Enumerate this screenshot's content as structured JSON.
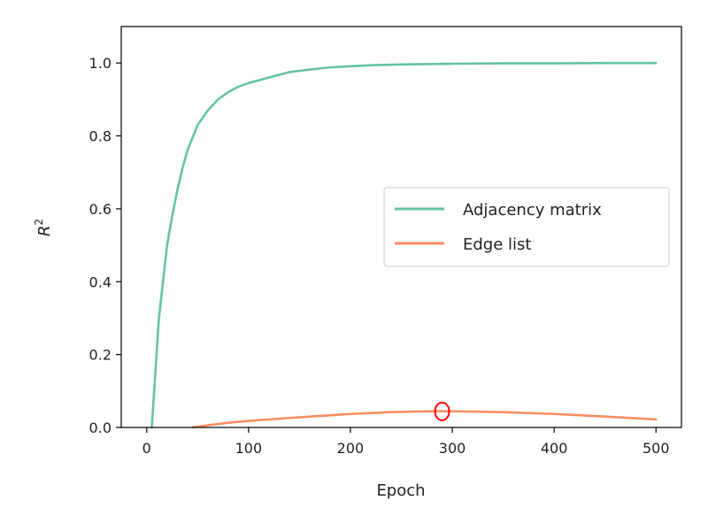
{
  "chart_data": {
    "type": "line",
    "title": "",
    "xlabel": "Epoch",
    "ylabel": "R",
    "ylabel_superscript": "2",
    "xlim": [
      -25,
      525
    ],
    "ylim": [
      0.0,
      1.1
    ],
    "xticks": [
      "0",
      "100",
      "200",
      "300",
      "400",
      "500"
    ],
    "yticks": [
      "0.0",
      "0.2",
      "0.4",
      "0.6",
      "0.8",
      "1.0"
    ],
    "grid": false,
    "legend_position": "center-right",
    "series": [
      {
        "name": "Adjacency matrix",
        "color": "#66c2a5",
        "x": [
          5,
          8,
          12,
          16,
          20,
          25,
          30,
          35,
          40,
          50,
          60,
          70,
          80,
          90,
          100,
          120,
          140,
          160,
          180,
          200,
          220,
          250,
          300,
          350,
          400,
          450,
          500
        ],
        "y": [
          0.0,
          0.13,
          0.3,
          0.4,
          0.5,
          0.58,
          0.65,
          0.71,
          0.76,
          0.83,
          0.87,
          0.9,
          0.92,
          0.935,
          0.945,
          0.96,
          0.975,
          0.982,
          0.988,
          0.991,
          0.994,
          0.996,
          0.998,
          0.999,
          0.999,
          1.0,
          1.0
        ]
      },
      {
        "name": "Edge list",
        "color": "#fc8d62",
        "x": [
          45,
          60,
          80,
          100,
          130,
          160,
          200,
          240,
          270,
          290,
          310,
          350,
          400,
          450,
          500
        ],
        "y": [
          0.0,
          0.006,
          0.013,
          0.018,
          0.024,
          0.03,
          0.037,
          0.042,
          0.044,
          0.0445,
          0.044,
          0.042,
          0.037,
          0.03,
          0.022
        ]
      }
    ],
    "annotations": [
      {
        "type": "circle-marker",
        "color": "#ff0000",
        "x": 290,
        "y": 0.044
      }
    ]
  }
}
